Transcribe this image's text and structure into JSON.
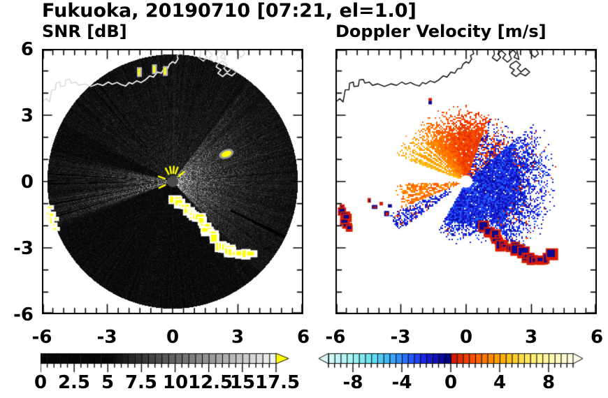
{
  "title": "Fukuoka, 20190710 [07:21, el=1.0]",
  "snr_subtitle": "SNR [dB]",
  "vel_subtitle": "Doppler Velocity [m/s]",
  "labels": {
    "y_left": [
      "6",
      "3",
      "0",
      "-3",
      "-6"
    ],
    "x_left": [
      "-6",
      "-3",
      "0",
      "3",
      "6"
    ],
    "x_right": [
      "-6",
      "-3",
      "0",
      "3",
      "6"
    ],
    "snr_bar": [
      "0",
      "2.5",
      "5",
      "7.5",
      "10",
      "12.5",
      "15",
      "17.5"
    ],
    "vel_bar": [
      "-8",
      "-4",
      "0",
      "4",
      "8"
    ]
  },
  "chart_data": {
    "type": "radar_ppi",
    "station": "Fukuoka",
    "date": "20190710",
    "time": "07:21",
    "elevation_deg": 1.0,
    "axes": {
      "xlim": [
        -6,
        6
      ],
      "ylim": [
        -6,
        6
      ],
      "x_major_ticks": [
        -6,
        -3,
        0,
        3,
        6
      ],
      "x_minor_step": 0.5,
      "y_major_ticks": [
        -6,
        -3,
        0,
        3,
        6
      ],
      "y_minor_step": 1.0,
      "grid": false
    },
    "coastline": [
      [
        [
          -6.05,
          3.55
        ],
        [
          -5.8,
          3.75
        ],
        [
          -5.65,
          3.6
        ],
        [
          -5.55,
          4.15
        ],
        [
          -5.38,
          4.15
        ],
        [
          -5.35,
          4.45
        ],
        [
          -5.18,
          4.5
        ],
        [
          -5.15,
          4.3
        ],
        [
          -4.95,
          4.32
        ],
        [
          -4.9,
          4.6
        ],
        [
          -4.72,
          4.62
        ],
        [
          -4.65,
          4.45
        ],
        [
          -4.45,
          4.5
        ],
        [
          -4.3,
          4.35
        ],
        [
          -4.05,
          4.42
        ],
        [
          -3.75,
          4.3
        ],
        [
          -3.45,
          4.42
        ],
        [
          -3.2,
          4.35
        ],
        [
          -2.95,
          4.5
        ],
        [
          -2.78,
          4.4
        ],
        [
          -2.55,
          4.48
        ],
        [
          -2.35,
          4.38
        ],
        [
          -2.15,
          4.32
        ],
        [
          -2.0,
          4.48
        ],
        [
          -1.85,
          4.42
        ],
        [
          -1.65,
          4.55
        ],
        [
          -1.45,
          4.48
        ],
        [
          -1.25,
          4.6
        ],
        [
          -1.05,
          4.78
        ],
        [
          -0.88,
          4.72
        ],
        [
          -0.7,
          4.95
        ],
        [
          -0.52,
          4.9
        ],
        [
          -0.4,
          5.1
        ],
        [
          -0.22,
          5.12
        ],
        [
          -0.15,
          5.3
        ],
        [
          0.0,
          5.42
        ],
        [
          0.12,
          5.35
        ],
        [
          0.25,
          5.55
        ],
        [
          0.2,
          5.7
        ],
        [
          0.35,
          5.78
        ],
        [
          0.3,
          5.95
        ],
        [
          0.42,
          6.1
        ]
      ],
      [
        [
          1.25,
          6.1
        ],
        [
          1.3,
          5.75
        ],
        [
          1.2,
          5.6
        ],
        [
          1.42,
          5.45
        ],
        [
          1.58,
          5.62
        ],
        [
          1.45,
          5.78
        ],
        [
          1.62,
          5.92
        ],
        [
          1.82,
          5.75
        ],
        [
          1.68,
          5.58
        ],
        [
          1.9,
          5.4
        ],
        [
          2.08,
          5.55
        ],
        [
          1.98,
          5.78
        ],
        [
          2.15,
          5.95
        ],
        [
          2.3,
          5.8
        ],
        [
          2.2,
          5.62
        ],
        [
          2.42,
          5.52
        ],
        [
          2.3,
          6.1
        ]
      ],
      [
        [
          2.05,
          5.3
        ],
        [
          2.3,
          5.45
        ],
        [
          2.5,
          5.28
        ],
        [
          2.35,
          5.12
        ],
        [
          2.52,
          4.95
        ],
        [
          2.72,
          5.12
        ],
        [
          2.92,
          4.95
        ],
        [
          2.72,
          4.78
        ],
        [
          2.48,
          4.9
        ],
        [
          2.3,
          4.75
        ],
        [
          2.08,
          4.9
        ],
        [
          2.22,
          5.05
        ],
        [
          2.0,
          5.18
        ],
        [
          2.05,
          5.3
        ]
      ],
      [
        [
          2.9,
          6.1
        ],
        [
          2.95,
          5.8
        ],
        [
          3.15,
          5.62
        ],
        [
          3.32,
          5.78
        ],
        [
          3.22,
          5.98
        ],
        [
          3.35,
          6.1
        ]
      ]
    ],
    "snr": {
      "colorbar": {
        "range": [
          0,
          17.5
        ],
        "segment": 0.5,
        "major_tick_step": 2.5,
        "tick_labels": [
          "0",
          "2.5",
          "5",
          "7.5",
          "10",
          "12.5",
          "15",
          "17.5"
        ],
        "scale": "black-to-white",
        "black_below": 5,
        "over_color": "#ffff00"
      },
      "disk_radius": 5.75,
      "bright_sectors": [
        {
          "name": "east-lobe",
          "center_deg": 3,
          "half_width_deg": 48,
          "peak": 165,
          "radial_decay": 1.8
        },
        {
          "name": "west-narrow",
          "center_deg": 176,
          "half_width_deg": 7,
          "peak": 120,
          "radial_decay": 2.0
        },
        {
          "name": "west-long",
          "center_deg": 193,
          "half_width_deg": 5,
          "peak": 140,
          "radial_decay": 2.6
        },
        {
          "name": "north-haze",
          "center_deg": 95,
          "half_width_deg": 55,
          "peak": 26,
          "radial_decay": 3.5
        }
      ],
      "shadow_rays": [
        [
          131,
          0.3,
          0.35
        ],
        [
          127.5,
          0.3,
          0.3
        ],
        [
          176.5,
          0.4,
          0.3
        ],
        [
          181,
          0.4,
          0.3
        ],
        [
          190.5,
          0.3,
          0.35
        ],
        [
          196.5,
          0.3,
          0.35
        ],
        [
          -26,
          2.95,
          0.9
        ]
      ],
      "clutter_arc": [
        [
          0.1,
          -0.75
        ],
        [
          0.5,
          -1.1
        ],
        [
          0.95,
          -1.45
        ],
        [
          1.35,
          -1.8
        ],
        [
          1.65,
          -2.2
        ],
        [
          1.95,
          -2.55
        ],
        [
          2.25,
          -2.9
        ],
        [
          2.7,
          -3.15
        ],
        [
          3.2,
          -3.35
        ],
        [
          3.55,
          -3.25
        ]
      ],
      "west_edge_blob": [
        [
          -5.68,
          -1.25
        ],
        [
          -5.52,
          -1.75
        ],
        [
          -5.4,
          -2.15
        ]
      ],
      "coast_targets": [
        [
          -1.54,
          4.95
        ],
        [
          -0.85,
          5.08
        ],
        [
          -0.35,
          5.0
        ]
      ],
      "ship": {
        "x": 2.47,
        "y": 1.25
      },
      "center_spokes": [
        40,
        70,
        85,
        100,
        118,
        160,
        205
      ],
      "center_dot_color": "#4a4a4a"
    },
    "doppler": {
      "colorbar": {
        "range": [
          -10,
          10
        ],
        "segment": 0.5,
        "major_ticks": [
          -8,
          -4,
          0,
          4,
          8
        ],
        "tick_labels": [
          "-8",
          "-4",
          "0",
          "4",
          "8"
        ]
      },
      "colormap": [
        [
          -10,
          "#d8f8f8"
        ],
        [
          -8,
          "#9ef2f2"
        ],
        [
          -6.5,
          "#62e2ee"
        ],
        [
          -5,
          "#3cb4f8"
        ],
        [
          -4,
          "#2a80ff"
        ],
        [
          -3,
          "#2050ff"
        ],
        [
          -2,
          "#1b1bdc"
        ],
        [
          -1,
          "#0f0fb0"
        ],
        [
          -0.01,
          "#000070"
        ],
        [
          0,
          "#d21000"
        ],
        [
          1,
          "#ea3800"
        ],
        [
          2,
          "#ff5a00"
        ],
        [
          3,
          "#ff8200"
        ],
        [
          4,
          "#ffa800"
        ],
        [
          5,
          "#ffc81e"
        ],
        [
          6,
          "#ffe250"
        ],
        [
          7,
          "#fff080"
        ],
        [
          8,
          "#fff8a8"
        ],
        [
          9,
          "#fffbc8"
        ],
        [
          10,
          "#fffde8"
        ]
      ],
      "center_hole_r": 0.28,
      "red_fan": {
        "a0": 70,
        "a1": 160,
        "r_core": 2.3,
        "r_max": 3.45,
        "gap_rays": [
          138,
          142.5,
          147,
          153
        ]
      },
      "mixed_zone": {
        "a0": 40,
        "a1": 70,
        "r_max": 3.3
      },
      "blue_fan": {
        "a0": -120,
        "a1": 40,
        "r_core": 2.5,
        "r_max": 4.3
      },
      "west_wedge": {
        "a0": -178,
        "a1": -158,
        "r_max": 3.25,
        "gap_rays": [
          -168,
          -163.5
        ]
      },
      "navy_streaks": {
        "a0": -157,
        "a1": -144,
        "r0": 0.8,
        "r_max": 3.8
      },
      "alias_arc": [
        [
          0.85,
          -2.1
        ],
        [
          1.3,
          -2.45
        ],
        [
          1.7,
          -2.95
        ],
        [
          2.3,
          -3.05
        ],
        [
          2.8,
          -3.45
        ],
        [
          3.4,
          -3.6
        ],
        [
          3.9,
          -3.35
        ]
      ],
      "west_edge_blob": [
        [
          -5.7,
          -1.2
        ],
        [
          -5.55,
          -1.7
        ],
        [
          -5.42,
          -2.15
        ]
      ],
      "west_specks": [
        [
          -4.45,
          -0.85
        ],
        [
          -4.2,
          -1.15
        ],
        [
          -3.9,
          -1.0
        ],
        [
          -3.65,
          -1.45
        ],
        [
          -3.5,
          -1.1
        ]
      ],
      "coast_dot": {
        "x": -1.65,
        "y": 3.65
      }
    }
  }
}
